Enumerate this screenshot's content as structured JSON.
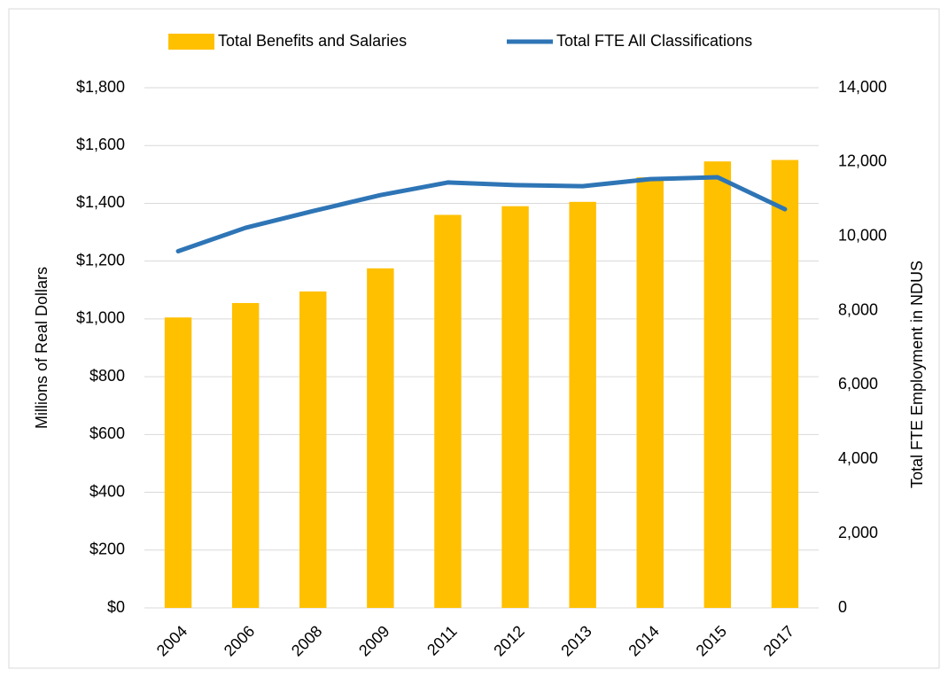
{
  "chart_data": {
    "type": "bar_line",
    "categories": [
      "2004",
      "2006",
      "2008",
      "2009",
      "2011",
      "2012",
      "2013",
      "2014",
      "2015",
      "2017"
    ],
    "series": [
      {
        "name": "Total Benefits and Salaries",
        "type": "bar",
        "color": "#ffc000",
        "axis": "y",
        "values": [
          1005,
          1055,
          1095,
          1175,
          1360,
          1390,
          1405,
          1490,
          1545,
          1550
        ]
      },
      {
        "name": "Total FTE All Classifications",
        "type": "line",
        "color": "#2e75b6",
        "axis": "y2",
        "values": [
          9600,
          10230,
          10680,
          11110,
          11450,
          11380,
          11350,
          11540,
          11590,
          10730
        ]
      }
    ],
    "ylabel": "Millions of Real Dollars",
    "y2label": "Total FTE Employment in NDUS",
    "ylim": [
      0,
      1800
    ],
    "yticks": [
      {
        "value": 0,
        "label": "$0"
      },
      {
        "value": 200,
        "label": "$200"
      },
      {
        "value": 400,
        "label": "$400"
      },
      {
        "value": 600,
        "label": "$600"
      },
      {
        "value": 800,
        "label": "$800"
      },
      {
        "value": 1000,
        "label": "$1,000"
      },
      {
        "value": 1200,
        "label": "$1,200"
      },
      {
        "value": 1400,
        "label": "$1,400"
      },
      {
        "value": 1600,
        "label": "$1,600"
      },
      {
        "value": 1800,
        "label": "$1,800"
      }
    ],
    "y2lim": [
      0,
      14000
    ],
    "y2ticks": [
      0,
      {
        "value": 2000,
        "label": "2,000"
      },
      {
        "value": 4000,
        "label": "4,000"
      },
      {
        "value": 6000,
        "label": "6,000"
      },
      {
        "value": 8000,
        "label": "8,000"
      },
      {
        "value": 10000,
        "label": "10,000"
      },
      {
        "value": 12000,
        "label": "12,000"
      },
      {
        "value": 14000,
        "label": "14,000"
      }
    ],
    "grid": true,
    "legend": "top"
  }
}
